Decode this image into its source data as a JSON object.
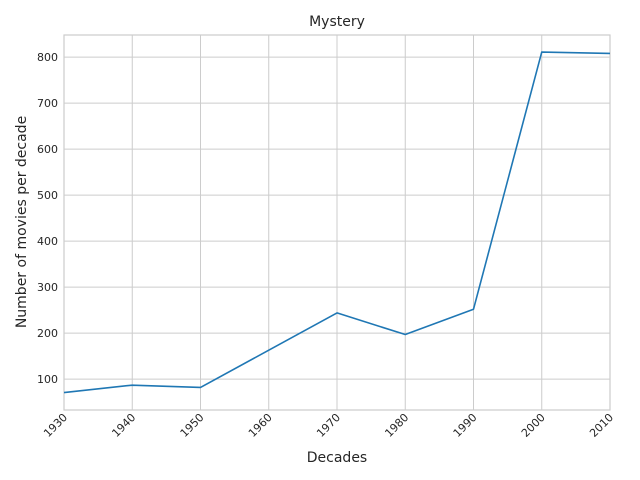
{
  "chart_data": {
    "type": "line",
    "title": "Mystery",
    "xlabel": "Decades",
    "ylabel": "Number of movies per decade",
    "x": [
      1930,
      1940,
      1950,
      1960,
      1970,
      1980,
      1990,
      2000,
      2010
    ],
    "series": [
      {
        "values": [
          71,
          87,
          82,
          163,
          244,
          197,
          252,
          811,
          808
        ],
        "color": "#1f77b4"
      }
    ],
    "xlim": [
      1930,
      2010
    ],
    "ylim": [
      33,
      848
    ],
    "xticks": [
      "1930",
      "1940",
      "1950",
      "1960",
      "1970",
      "1980",
      "1990",
      "2000",
      "2010"
    ],
    "yticks": [
      100,
      200,
      300,
      400,
      500,
      600,
      700,
      800
    ],
    "grid": true,
    "style": "whitegrid"
  }
}
